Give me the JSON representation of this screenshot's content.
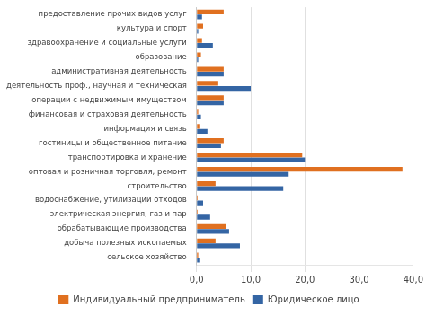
{
  "chart_data": {
    "type": "bar",
    "orientation": "horizontal",
    "categories": [
      "предоставление прочих видов услуг",
      "культура и спорт",
      "здравоохранение и социальные услуги",
      "образование",
      "административная деятельность",
      "деятельность проф., научная и техническая",
      "операции с недвижимым имуществом",
      "финансовая и страховая деятельность",
      "информация и связь",
      "гостиницы и общественное питание",
      "транспортировка и хранение",
      "оптовая и розничная торговля, ремонт",
      "строительство",
      "водоснабжение, утилизации отходов",
      "электрическая энергия, газ и пар",
      "обрабатывающие производства",
      "добыча полезных ископаемых",
      "сельское хозяйство"
    ],
    "series": [
      {
        "name": "Индивидуальный предприниматель",
        "color": "#E07020",
        "values": [
          5.0,
          1.2,
          1.0,
          0.8,
          5.0,
          4.0,
          5.0,
          0.3,
          0.5,
          5.0,
          19.5,
          38.0,
          3.5,
          0.2,
          0.2,
          5.5,
          3.5,
          0.3
        ]
      },
      {
        "name": "Юридическое лицо",
        "color": "#3465A4",
        "values": [
          1.0,
          0.3,
          3.0,
          0.3,
          5.0,
          10.0,
          5.0,
          0.8,
          2.0,
          4.5,
          20.0,
          17.0,
          16.0,
          1.2,
          2.5,
          6.0,
          8.0,
          0.5
        ]
      }
    ],
    "xlim": [
      0,
      40
    ],
    "xticks": [
      {
        "value": 0,
        "label": "0,0"
      },
      {
        "value": 10,
        "label": "10,0"
      },
      {
        "value": 20,
        "label": "20,0"
      },
      {
        "value": 30,
        "label": "30,0"
      },
      {
        "value": 40,
        "label": "40,0"
      }
    ],
    "grid": true,
    "legend": "bottom"
  }
}
